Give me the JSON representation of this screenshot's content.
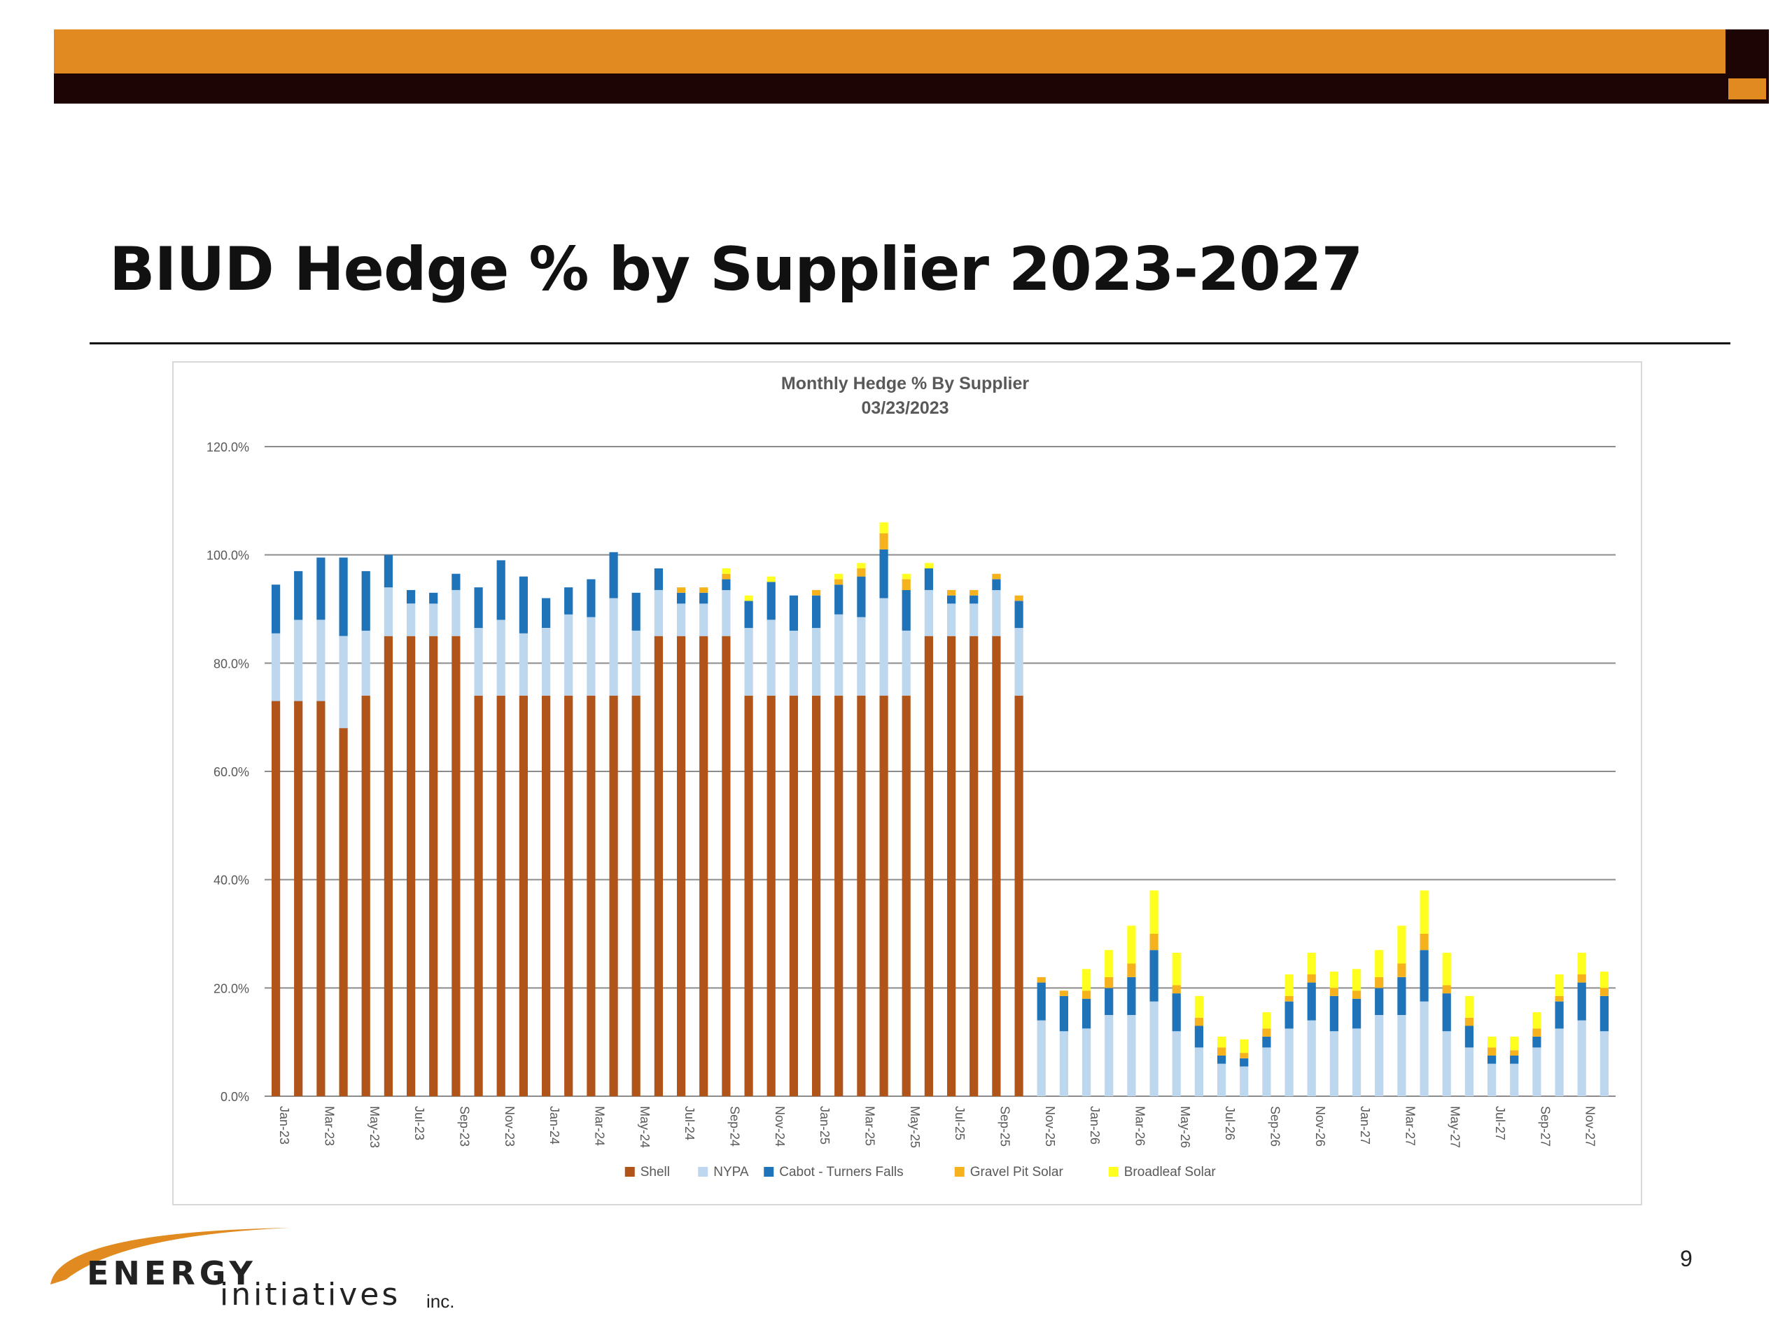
{
  "slide": {
    "title": "BIUD Hedge % by Supplier 2023-2027",
    "page_number": "9",
    "logo": {
      "word1": "ENERGY",
      "word2": "initiatives",
      "suffix": "inc."
    }
  },
  "colors": {
    "header_orange": "#e08a20",
    "header_dark": "#1d0505",
    "shell": "#b0541a",
    "nypa": "#bdd7ee",
    "cabot": "#1f73b8",
    "gravel": "#f5b21c",
    "broadleaf": "#ffff1f"
  },
  "chart_data": {
    "type": "bar",
    "stacked": true,
    "title": "Monthly Hedge % By Supplier",
    "subtitle": "03/23/2023",
    "ylim": [
      0,
      120
    ],
    "yticks": [
      "0.0%",
      "20.0%",
      "40.0%",
      "60.0%",
      "80.0%",
      "100.0%",
      "120.0%"
    ],
    "grid": true,
    "legend_position": "bottom",
    "x_tick_labels": [
      "Jan-23",
      "Mar-23",
      "May-23",
      "Jul-23",
      "Sep-23",
      "Nov-23",
      "Jan-24",
      "Mar-24",
      "May-24",
      "Jul-24",
      "Sep-24",
      "Nov-24",
      "Jan-25",
      "Mar-25",
      "May-25",
      "Jul-25",
      "Sep-25",
      "Nov-25",
      "Jan-26",
      "Mar-26",
      "May-26",
      "Jul-26",
      "Sep-26",
      "Nov-26",
      "Jan-27",
      "Mar-27",
      "May-27",
      "Jul-27",
      "Sep-27",
      "Nov-27"
    ],
    "categories": [
      "Jan-23",
      "Feb-23",
      "Mar-23",
      "Apr-23",
      "May-23",
      "Jun-23",
      "Jul-23",
      "Aug-23",
      "Sep-23",
      "Oct-23",
      "Nov-23",
      "Dec-23",
      "Jan-24",
      "Feb-24",
      "Mar-24",
      "Apr-24",
      "May-24",
      "Jun-24",
      "Jul-24",
      "Aug-24",
      "Sep-24",
      "Oct-24",
      "Nov-24",
      "Dec-24",
      "Jan-25",
      "Feb-25",
      "Mar-25",
      "Apr-25",
      "May-25",
      "Jun-25",
      "Jul-25",
      "Aug-25",
      "Sep-25",
      "Oct-25",
      "Nov-25",
      "Dec-25",
      "Jan-26",
      "Feb-26",
      "Mar-26",
      "Apr-26",
      "May-26",
      "Jun-26",
      "Jul-26",
      "Aug-26",
      "Sep-26",
      "Oct-26",
      "Nov-26",
      "Dec-26",
      "Jan-27",
      "Feb-27",
      "Mar-27",
      "Apr-27",
      "May-27",
      "Jun-27",
      "Jul-27",
      "Aug-27",
      "Sep-27",
      "Oct-27",
      "Nov-27",
      "Dec-27"
    ],
    "series": [
      {
        "name": "Shell",
        "values": [
          73,
          73,
          73,
          68,
          74,
          85,
          85,
          85,
          85,
          74,
          74,
          74,
          74,
          74,
          74,
          74,
          74,
          85,
          85,
          85,
          85,
          74,
          74,
          74,
          74,
          74,
          74,
          74,
          74,
          85,
          85,
          85,
          85,
          74,
          0,
          0,
          0,
          0,
          0,
          0,
          0,
          0,
          0,
          0,
          0,
          0,
          0,
          0,
          0,
          0,
          0,
          0,
          0,
          0,
          0,
          0,
          0,
          0,
          0,
          0
        ]
      },
      {
        "name": "NYPA",
        "values": [
          12.5,
          15,
          15,
          17,
          12,
          9,
          6,
          6,
          8.5,
          12.5,
          14,
          11.5,
          12.5,
          15,
          14.5,
          18,
          12,
          8.5,
          6,
          6,
          8.5,
          12.5,
          14,
          12,
          12.5,
          15,
          14.5,
          18,
          12,
          8.5,
          6,
          6,
          8.5,
          12.5,
          14,
          12,
          12.5,
          15,
          15,
          17.5,
          12,
          9,
          6,
          5.5,
          9,
          12.5,
          14,
          12,
          12.5,
          15,
          15,
          17.5,
          12,
          9,
          6,
          6,
          9,
          12.5,
          14,
          12
        ]
      },
      {
        "name": "Cabot - Turners Falls",
        "values": [
          9,
          9,
          11.5,
          14.5,
          11,
          6,
          2.5,
          2,
          3,
          7.5,
          11,
          10.5,
          5.5,
          5,
          7,
          8.5,
          7,
          4,
          2,
          2,
          2,
          5,
          7,
          6.5,
          6,
          5.5,
          7.5,
          9,
          7.5,
          4,
          1.5,
          1.5,
          2,
          5,
          7,
          6.5,
          5.5,
          5,
          7,
          9.5,
          7,
          4,
          1.5,
          1.5,
          2,
          5,
          7,
          6.5,
          5.5,
          5,
          7,
          9.5,
          7,
          4,
          1.5,
          1.5,
          2,
          5,
          7,
          6.5
        ]
      },
      {
        "name": "Gravel Pit Solar",
        "values": [
          0,
          0,
          0,
          0,
          0,
          0,
          0,
          0,
          0,
          0,
          0,
          0,
          0,
          0,
          0,
          0,
          0,
          0,
          1,
          1,
          1,
          0,
          0,
          0,
          1,
          1,
          1.5,
          3,
          2,
          0,
          1,
          1,
          1,
          1,
          1,
          1,
          1.5,
          2,
          2.5,
          3,
          1.5,
          1.5,
          1.5,
          1,
          1.5,
          1,
          1.5,
          1.5,
          1.5,
          2,
          2.5,
          3,
          1.5,
          1.5,
          1.5,
          1,
          1.5,
          1,
          1.5,
          1.5
        ]
      },
      {
        "name": "Broadleaf Solar",
        "values": [
          0,
          0,
          0,
          0,
          0,
          0,
          0,
          0,
          0,
          0,
          0,
          0,
          0,
          0,
          0,
          0,
          0,
          0,
          0,
          0,
          1,
          1,
          1,
          0,
          0,
          1,
          1,
          2,
          1,
          1,
          0,
          0,
          0,
          0,
          0,
          0,
          4,
          5,
          7,
          8,
          6,
          4,
          2,
          2.5,
          3,
          4,
          4,
          3,
          4,
          5,
          7,
          8,
          6,
          4,
          2,
          2.5,
          3,
          4,
          4,
          3
        ]
      }
    ]
  }
}
